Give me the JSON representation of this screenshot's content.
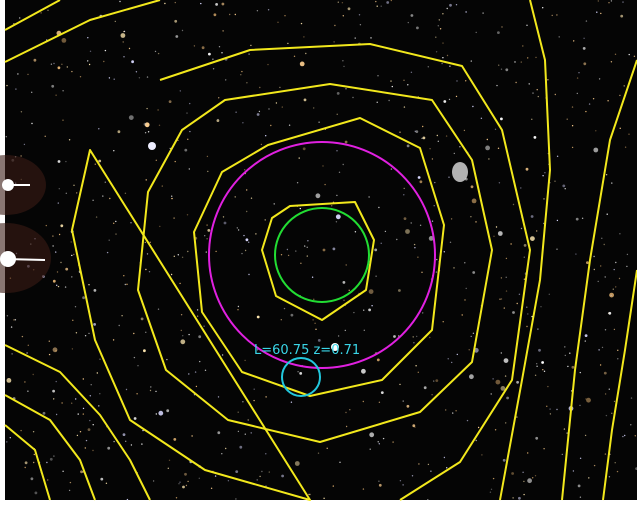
{
  "annotation": {
    "label": "L=60.75 z=0.71"
  }
}
